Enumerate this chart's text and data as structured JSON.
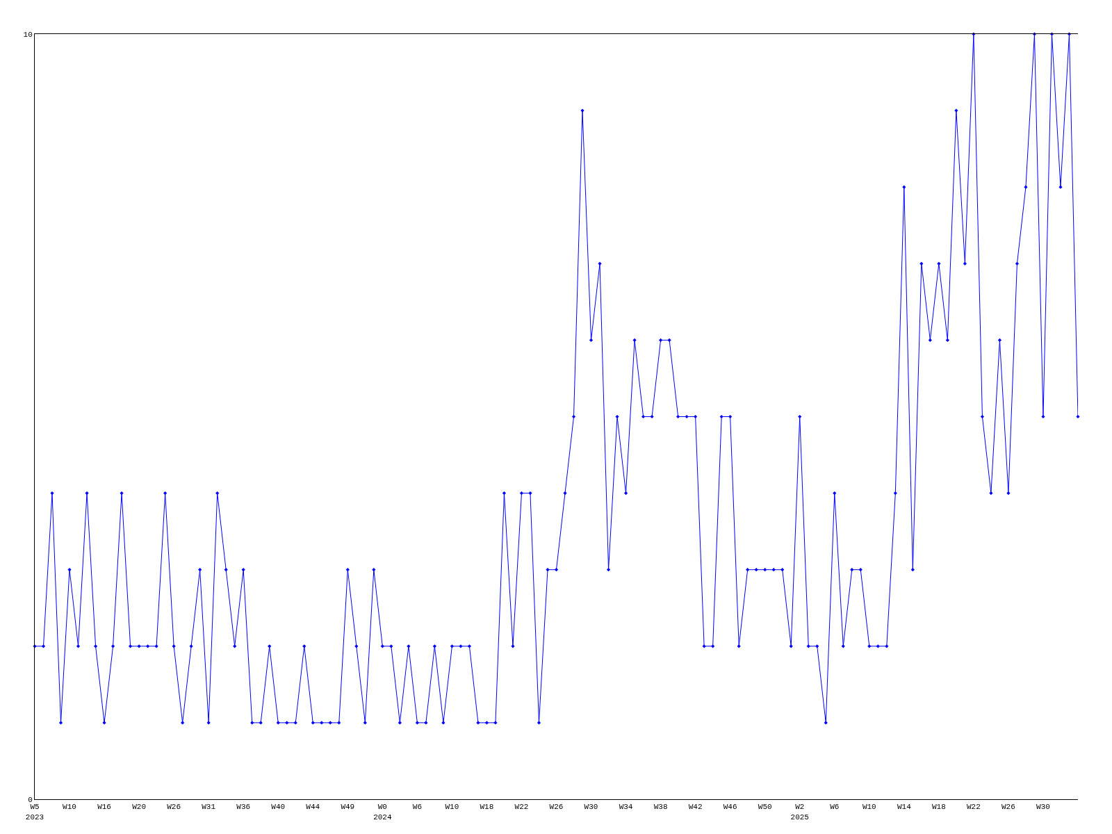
{
  "chart_data": {
    "type": "line",
    "categories": [
      "W5\n2023",
      null,
      null,
      null,
      "W10",
      null,
      null,
      null,
      "W16",
      null,
      null,
      null,
      "W20",
      null,
      null,
      null,
      "W26",
      null,
      null,
      null,
      "W31",
      null,
      null,
      null,
      "W36",
      null,
      null,
      null,
      "W40",
      null,
      null,
      null,
      "W44",
      null,
      null,
      null,
      "W49",
      null,
      null,
      null,
      "W0\n2024",
      null,
      null,
      null,
      "W6",
      null,
      null,
      null,
      "W10",
      null,
      null,
      null,
      "W18",
      null,
      null,
      null,
      "W22",
      null,
      null,
      null,
      "W26",
      null,
      null,
      null,
      "W30",
      null,
      null,
      null,
      "W34",
      null,
      null,
      null,
      "W38",
      null,
      null,
      null,
      "W42",
      null,
      null,
      null,
      "W46",
      null,
      null,
      null,
      "W50",
      null,
      null,
      null,
      "W2\n2025",
      null,
      null,
      null,
      "W6",
      null,
      null,
      null,
      "W10",
      null,
      null,
      null,
      "W14",
      null,
      null,
      null,
      "W18",
      null,
      null,
      null,
      "W22",
      null,
      null,
      null,
      "W26",
      null,
      null,
      null,
      "W30",
      null,
      null,
      null,
      null
    ],
    "series": [
      {
        "color": "#0000ff",
        "values": [
          2,
          2,
          4,
          1,
          3,
          2,
          4,
          2,
          1,
          2,
          4,
          2,
          2,
          2,
          2,
          4,
          2,
          1,
          2,
          3,
          1,
          4,
          3,
          2,
          3,
          1,
          1,
          2,
          1,
          1,
          1,
          2,
          1,
          1,
          1,
          1,
          3,
          2,
          1,
          3,
          2,
          2,
          1,
          2,
          1,
          1,
          2,
          1,
          2,
          2,
          2,
          1,
          1,
          1,
          4,
          2,
          4,
          4,
          1,
          3,
          3,
          4,
          5,
          9,
          6,
          7,
          3,
          5,
          4,
          6,
          5,
          5,
          6,
          6,
          5,
          5,
          5,
          2,
          2,
          5,
          5,
          2,
          3,
          3,
          3,
          3,
          3,
          2,
          5,
          2,
          2,
          1,
          4,
          2,
          3,
          3,
          2,
          2,
          2,
          4,
          8,
          3,
          7,
          6,
          7,
          6,
          9,
          7,
          10,
          5,
          4,
          6,
          4,
          7,
          8,
          10,
          5,
          10,
          8,
          10,
          5
        ]
      }
    ],
    "ylim": [
      0,
      10
    ],
    "yticks": [
      0,
      10
    ],
    "legend": false,
    "marker": "diamond",
    "line_style": "solid"
  }
}
